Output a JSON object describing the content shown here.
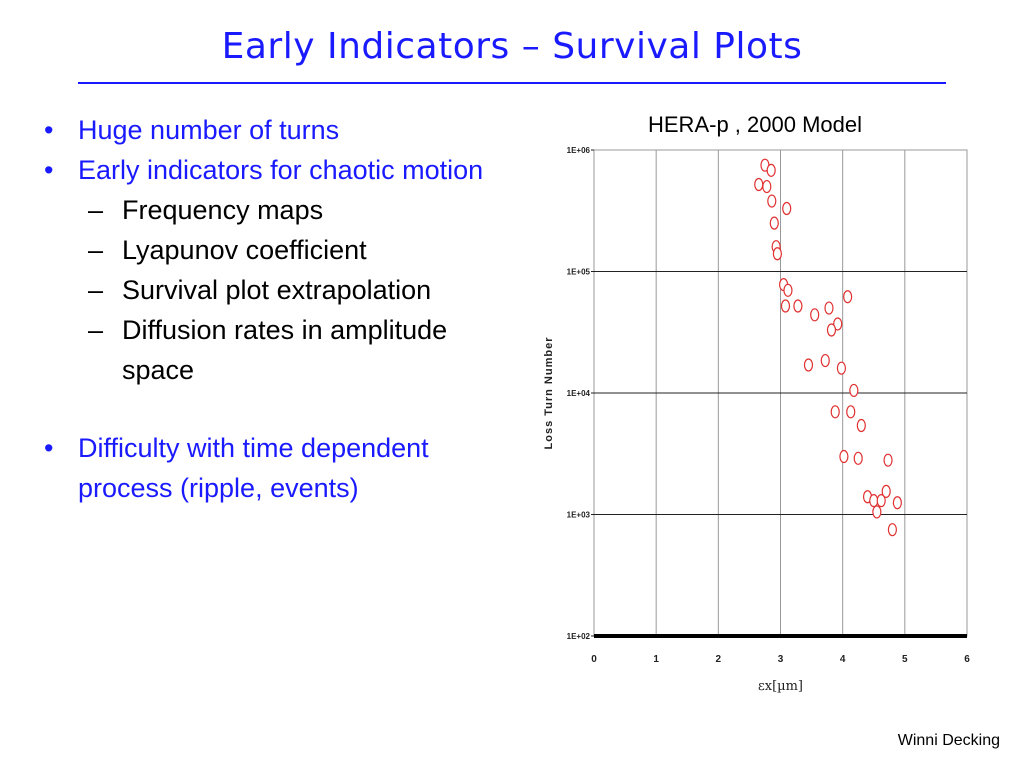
{
  "slide": {
    "title": "Early Indicators – Survival Plots",
    "footer": "Winni Decking"
  },
  "bullets": [
    {
      "level": 1,
      "text": "Huge number of turns"
    },
    {
      "level": 1,
      "text": "Early indicators for chaotic motion"
    },
    {
      "level": 2,
      "text": "Frequency maps"
    },
    {
      "level": 2,
      "text": "Lyapunov coefficient"
    },
    {
      "level": 2,
      "text": "Survival plot extrapolation"
    },
    {
      "level": 2,
      "text": "Diffusion rates in amplitude space"
    },
    {
      "level": 1,
      "text": "Difficulty with time dependent process (ripple, events)"
    }
  ],
  "chart_data": {
    "type": "scatter",
    "title": "HERA-p , 2000 Model",
    "xlabel": "εx[µm]",
    "ylabel": "Loss Turn Number",
    "xlim": [
      0,
      6
    ],
    "ylim": [
      100,
      1000000
    ],
    "yscale": "log",
    "x_ticks": [
      "0",
      "1",
      "2",
      "3",
      "4",
      "5",
      "6"
    ],
    "y_ticks": [
      "1E+02",
      "1E+03",
      "1E+04",
      "1E+05",
      "1E+06"
    ],
    "grid": true,
    "marker_color": "#e03030",
    "series": [
      {
        "points": [
          [
            2.75,
            750000
          ],
          [
            2.85,
            680000
          ],
          [
            2.65,
            520000
          ],
          [
            2.78,
            500000
          ],
          [
            2.86,
            380000
          ],
          [
            3.1,
            330000
          ],
          [
            2.9,
            250000
          ],
          [
            2.93,
            160000
          ],
          [
            2.95,
            140000
          ],
          [
            3.05,
            78000
          ],
          [
            3.12,
            70000
          ],
          [
            4.08,
            62000
          ],
          [
            3.08,
            52000
          ],
          [
            3.28,
            52000
          ],
          [
            3.55,
            44000
          ],
          [
            3.78,
            50000
          ],
          [
            3.92,
            37000
          ],
          [
            3.82,
            33000
          ],
          [
            3.45,
            17000
          ],
          [
            3.72,
            18500
          ],
          [
            3.98,
            16000
          ],
          [
            4.18,
            10500
          ],
          [
            3.88,
            7000
          ],
          [
            4.13,
            7000
          ],
          [
            4.3,
            5400
          ],
          [
            4.02,
            3000
          ],
          [
            4.25,
            2900
          ],
          [
            4.73,
            2800
          ],
          [
            4.4,
            1400
          ],
          [
            4.5,
            1300
          ],
          [
            4.62,
            1300
          ],
          [
            4.7,
            1550
          ],
          [
            4.88,
            1250
          ],
          [
            4.55,
            1050
          ],
          [
            4.8,
            750
          ]
        ]
      }
    ]
  }
}
